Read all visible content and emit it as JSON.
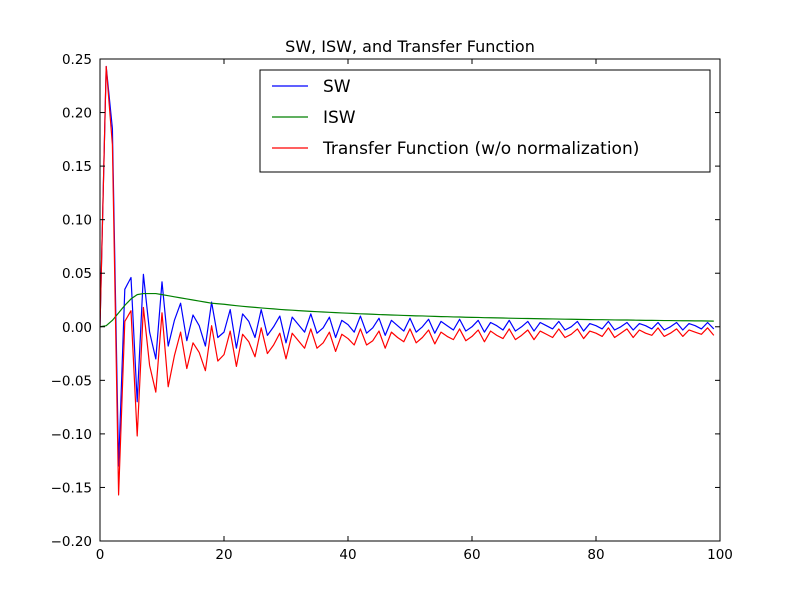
{
  "chart_data": {
    "type": "line",
    "title": "SW, ISW, and Transfer Function",
    "xlabel": "",
    "ylabel": "",
    "xlim": [
      0,
      100
    ],
    "ylim": [
      -0.2,
      0.25
    ],
    "x_ticks": [
      0,
      20,
      40,
      60,
      80,
      100
    ],
    "x_tick_labels": [
      "0",
      "20",
      "40",
      "60",
      "80",
      "100"
    ],
    "y_ticks": [
      -0.2,
      -0.15,
      -0.1,
      -0.05,
      0.0,
      0.05,
      0.1,
      0.15,
      0.2,
      0.25
    ],
    "y_tick_labels": [
      "−0.20",
      "−0.15",
      "−0.10",
      "−0.05",
      "0.00",
      "0.05",
      "0.10",
      "0.15",
      "0.20",
      "0.25"
    ],
    "grid": false,
    "legend_position": "upper-right",
    "x": [
      0,
      1,
      2,
      3,
      4,
      5,
      6,
      7,
      8,
      9,
      10,
      11,
      12,
      13,
      14,
      15,
      16,
      17,
      18,
      19,
      20,
      21,
      22,
      23,
      24,
      25,
      26,
      27,
      28,
      29,
      30,
      31,
      32,
      33,
      34,
      35,
      36,
      37,
      38,
      39,
      40,
      41,
      42,
      43,
      44,
      45,
      46,
      47,
      48,
      49,
      50,
      51,
      52,
      53,
      54,
      55,
      56,
      57,
      58,
      59,
      60,
      61,
      62,
      63,
      64,
      65,
      66,
      67,
      68,
      69,
      70,
      71,
      72,
      73,
      74,
      75,
      76,
      77,
      78,
      79,
      80,
      81,
      82,
      83,
      84,
      85,
      86,
      87,
      88,
      89,
      90,
      91,
      92,
      93,
      94,
      95,
      96,
      97,
      98,
      99
    ],
    "series": [
      {
        "name": "SW",
        "color": "#0000ff",
        "values": [
          0.0,
          0.243,
          0.185,
          -0.13,
          0.035,
          0.046,
          -0.07,
          0.049,
          -0.005,
          -0.03,
          0.042,
          -0.018,
          0.006,
          0.022,
          -0.013,
          0.011,
          0.001,
          -0.018,
          0.023,
          -0.01,
          -0.005,
          0.016,
          -0.02,
          0.012,
          0.005,
          -0.01,
          0.016,
          -0.008,
          0.0,
          0.01,
          -0.015,
          0.009,
          0.002,
          -0.005,
          0.012,
          -0.006,
          -0.001,
          0.009,
          -0.01,
          0.006,
          0.002,
          -0.005,
          0.01,
          -0.006,
          -0.001,
          0.008,
          -0.008,
          0.006,
          0.001,
          -0.004,
          0.008,
          -0.005,
          0.0,
          0.007,
          -0.006,
          0.005,
          0.001,
          -0.003,
          0.007,
          -0.004,
          0.0,
          0.006,
          -0.005,
          0.004,
          0.001,
          -0.003,
          0.006,
          -0.004,
          0.0,
          0.005,
          -0.004,
          0.004,
          0.001,
          -0.002,
          0.005,
          -0.003,
          0.0,
          0.005,
          -0.004,
          0.003,
          0.001,
          -0.002,
          0.005,
          -0.003,
          0.0,
          0.004,
          -0.003,
          0.003,
          0.001,
          -0.002,
          0.004,
          -0.003,
          0.0,
          0.004,
          -0.003,
          0.003,
          0.001,
          -0.002,
          0.004,
          -0.002
        ]
      },
      {
        "name": "ISW",
        "color": "#008000",
        "values": [
          0.0,
          0.001,
          0.006,
          0.013,
          0.02,
          0.026,
          0.03,
          0.031,
          0.031,
          0.031,
          0.03,
          0.029,
          0.028,
          0.027,
          0.026,
          0.025,
          0.024,
          0.023,
          0.022,
          0.0215,
          0.021,
          0.0203,
          0.0197,
          0.0191,
          0.0186,
          0.0181,
          0.0176,
          0.0171,
          0.0167,
          0.0162,
          0.0158,
          0.0155,
          0.0151,
          0.0147,
          0.0144,
          0.0141,
          0.0138,
          0.0135,
          0.0132,
          0.0129,
          0.0127,
          0.0124,
          0.0121,
          0.0119,
          0.0117,
          0.0114,
          0.0112,
          0.011,
          0.0108,
          0.0106,
          0.0104,
          0.0102,
          0.0101,
          0.0099,
          0.0097,
          0.0095,
          0.0094,
          0.0092,
          0.0091,
          0.0089,
          0.0088,
          0.0087,
          0.0085,
          0.0084,
          0.0083,
          0.0082,
          0.008,
          0.0079,
          0.0078,
          0.0077,
          0.0076,
          0.0075,
          0.0074,
          0.0073,
          0.0072,
          0.0071,
          0.007,
          0.0069,
          0.0068,
          0.0067,
          0.0066,
          0.0066,
          0.0065,
          0.0064,
          0.0063,
          0.0063,
          0.0062,
          0.0061,
          0.006,
          0.006,
          0.0059,
          0.0058,
          0.0058,
          0.0057,
          0.0056,
          0.0056,
          0.0055,
          0.0055,
          0.0054,
          0.0053
        ]
      },
      {
        "name": "Transfer Function (w/o normalization)",
        "color": "#ff0000",
        "values": [
          0.0,
          0.243,
          0.17,
          -0.157,
          0.005,
          0.015,
          -0.102,
          0.018,
          -0.036,
          -0.061,
          0.013,
          -0.056,
          -0.027,
          -0.005,
          -0.039,
          -0.015,
          -0.024,
          -0.041,
          0.001,
          -0.032,
          -0.026,
          -0.004,
          -0.037,
          -0.007,
          -0.014,
          -0.028,
          -0.001,
          -0.025,
          -0.017,
          -0.006,
          -0.03,
          -0.006,
          -0.013,
          -0.02,
          -0.002,
          -0.02,
          -0.015,
          -0.005,
          -0.023,
          -0.007,
          -0.011,
          -0.017,
          -0.002,
          -0.017,
          -0.013,
          -0.004,
          -0.02,
          -0.005,
          -0.01,
          -0.014,
          -0.002,
          -0.015,
          -0.01,
          -0.003,
          -0.016,
          -0.005,
          -0.009,
          -0.012,
          -0.002,
          -0.013,
          -0.009,
          -0.003,
          -0.014,
          -0.004,
          -0.008,
          -0.011,
          -0.002,
          -0.012,
          -0.008,
          -0.003,
          -0.012,
          -0.004,
          -0.007,
          -0.01,
          -0.002,
          -0.01,
          -0.007,
          -0.002,
          -0.011,
          -0.004,
          -0.006,
          -0.009,
          -0.001,
          -0.01,
          -0.006,
          -0.002,
          -0.01,
          -0.003,
          -0.006,
          -0.008,
          -0.001,
          -0.009,
          -0.006,
          -0.002,
          -0.009,
          -0.003,
          -0.005,
          -0.007,
          -0.001,
          -0.008
        ]
      }
    ]
  }
}
